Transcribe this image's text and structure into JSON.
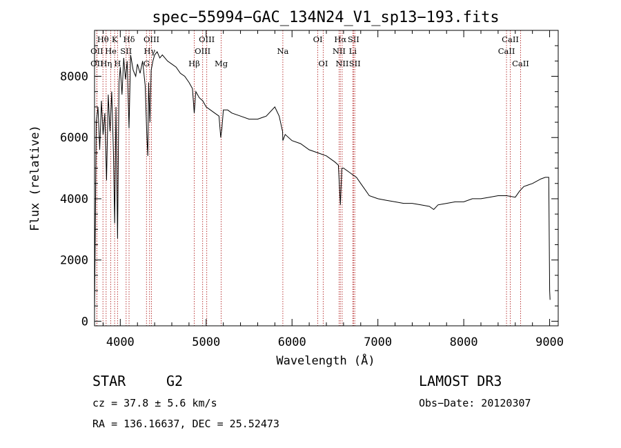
{
  "chart_data": {
    "type": "line",
    "title": "spec−55994−GAC_134N24_V1_sp13−193.fits",
    "xlabel": "Wavelength (Å)",
    "ylabel": "Flux (relative)",
    "xlim": [
      3700,
      9100
    ],
    "ylim": [
      -150,
      9500
    ],
    "x_ticks": [
      4000,
      5000,
      6000,
      7000,
      8000,
      9000
    ],
    "y_ticks": [
      0,
      2000,
      4000,
      6000,
      8000
    ],
    "series": [
      {
        "name": "spectrum",
        "x": [
          3700,
          3720,
          3740,
          3760,
          3780,
          3800,
          3820,
          3840,
          3860,
          3880,
          3900,
          3920,
          3935,
          3950,
          3968,
          3985,
          4000,
          4020,
          4040,
          4060,
          4080,
          4102,
          4120,
          4150,
          4180,
          4200,
          4230,
          4260,
          4290,
          4310,
          4320,
          4330,
          4345,
          4360,
          4380,
          4400,
          4430,
          4460,
          4490,
          4520,
          4550,
          4600,
          4650,
          4700,
          4750,
          4800,
          4840,
          4861,
          4880,
          4920,
          4960,
          5000,
          5050,
          5100,
          5150,
          5170,
          5183,
          5200,
          5250,
          5300,
          5400,
          5500,
          5600,
          5700,
          5800,
          5850,
          5890,
          5893,
          5920,
          6000,
          6100,
          6200,
          6300,
          6400,
          6500,
          6540,
          6563,
          6580,
          6600,
          6650,
          6700,
          6750,
          6800,
          6850,
          6900,
          7000,
          7100,
          7200,
          7300,
          7400,
          7500,
          7600,
          7650,
          7700,
          7800,
          7900,
          8000,
          8100,
          8200,
          8300,
          8400,
          8500,
          8600,
          8650,
          8700,
          8800,
          8900,
          8950,
          8990,
          9000,
          9005
        ],
        "values": [
          300,
          6500,
          7000,
          5600,
          7200,
          6100,
          6800,
          4600,
          7400,
          6200,
          7500,
          5500,
          3200,
          7000,
          2700,
          7800,
          8300,
          7400,
          8600,
          7900,
          8500,
          6300,
          8700,
          8200,
          8000,
          8400,
          8100,
          8500,
          7700,
          6000,
          5400,
          7800,
          6500,
          8200,
          8500,
          8700,
          8800,
          8600,
          8700,
          8600,
          8500,
          8400,
          8300,
          8100,
          8000,
          7800,
          7600,
          6800,
          7500,
          7300,
          7200,
          7000,
          6900,
          6800,
          6700,
          6000,
          6300,
          6900,
          6900,
          6800,
          6700,
          6600,
          6600,
          6700,
          7000,
          6700,
          6200,
          5900,
          6100,
          5900,
          5800,
          5600,
          5500,
          5400,
          5200,
          5100,
          3800,
          5000,
          5000,
          4900,
          4800,
          4700,
          4500,
          4300,
          4100,
          4000,
          3950,
          3900,
          3850,
          3850,
          3800,
          3750,
          3650,
          3800,
          3850,
          3900,
          3900,
          4000,
          4000,
          4050,
          4100,
          4100,
          4050,
          4250,
          4400,
          4500,
          4650,
          4700,
          4700,
          1000,
          700
        ]
      }
    ],
    "line_marks": [
      {
        "label": "Hθ",
        "x": 3798,
        "row": 1
      },
      {
        "label": "OII",
        "x": 3727,
        "row": 2
      },
      {
        "label": "OII",
        "x": 3727,
        "row": 3
      },
      {
        "label": "K",
        "x": 3934,
        "row": 1
      },
      {
        "label": "He",
        "x": 3889,
        "row": 2
      },
      {
        "label": "Hη",
        "x": 3835,
        "row": 3
      },
      {
        "label": "Hδ",
        "x": 4102,
        "row": 1
      },
      {
        "label": "SII",
        "x": 4068,
        "row": 2
      },
      {
        "label": "H",
        "x": 3968,
        "row": 3
      },
      {
        "label": "OIII",
        "x": 4363,
        "row": 1
      },
      {
        "label": "Hγ",
        "x": 4341,
        "row": 2
      },
      {
        "label": "G",
        "x": 4305,
        "row": 3
      },
      {
        "label": "OIII",
        "x": 5007,
        "row": 1
      },
      {
        "label": "OIII",
        "x": 4959,
        "row": 2
      },
      {
        "label": "Hβ",
        "x": 4861,
        "row": 3
      },
      {
        "label": "Mg",
        "x": 5175,
        "row": 3
      },
      {
        "label": "Na",
        "x": 5893,
        "row": 2
      },
      {
        "label": "OI",
        "x": 6300,
        "row": 1
      },
      {
        "label": "OI",
        "x": 6363,
        "row": 3
      },
      {
        "label": "Hα",
        "x": 6563,
        "row": 1
      },
      {
        "label": "NII",
        "x": 6548,
        "row": 2
      },
      {
        "label": "NII",
        "x": 6584,
        "row": 3
      },
      {
        "label": "SII",
        "x": 6716,
        "row": 1
      },
      {
        "label": "Li",
        "x": 6708,
        "row": 2
      },
      {
        "label": "SII",
        "x": 6731,
        "row": 3
      },
      {
        "label": "CaII",
        "x": 8542,
        "row": 1
      },
      {
        "label": "CaII",
        "x": 8498,
        "row": 2
      },
      {
        "label": "CaII",
        "x": 8662,
        "row": 3
      }
    ]
  },
  "info": {
    "object_class": "STAR",
    "subclass": "G2",
    "survey": "LAMOST DR3",
    "redshift": "cz = 37.8 ± 5.6 km/s",
    "obs_date": "Obs−Date: 20120307",
    "coords": "RA = 136.16637, DEC =  25.52473"
  }
}
